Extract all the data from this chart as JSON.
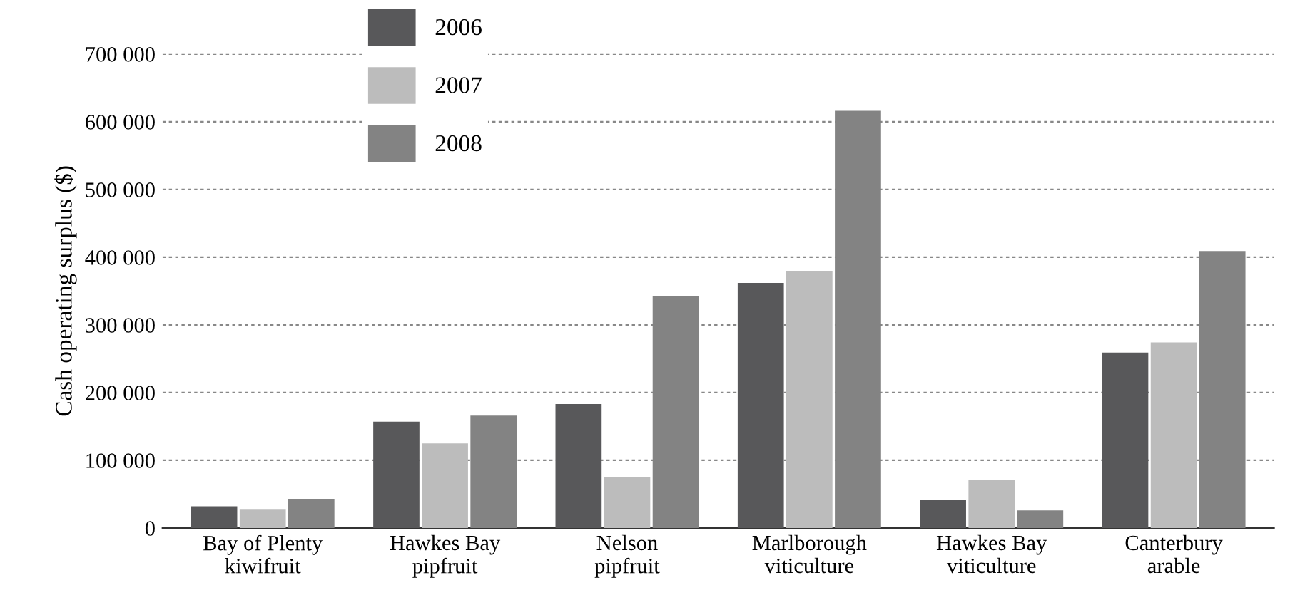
{
  "chart_data": {
    "type": "bar",
    "ylabel": "Cash operating surplus ($)",
    "categories": [
      "Bay of Plenty\nkiwifruit",
      "Hawkes Bay\npipfruit",
      "Nelson\npipfruit",
      "Marlborough\nviticulture",
      "Hawkes Bay\nviticulture",
      "Canterbury\narable"
    ],
    "series": [
      {
        "name": "2006",
        "color": "#58585a",
        "values": [
          32000,
          157000,
          183000,
          362000,
          41000,
          259000
        ]
      },
      {
        "name": "2007",
        "color": "#bcbcbc",
        "values": [
          28000,
          125000,
          75000,
          379000,
          71000,
          274000
        ]
      },
      {
        "name": "2008",
        "color": "#838383",
        "values": [
          43000,
          166000,
          343000,
          616000,
          26000,
          409000
        ]
      }
    ],
    "ylim": [
      0,
      700000
    ],
    "yticks": [
      {
        "value": 0,
        "label": "0"
      },
      {
        "value": 100000,
        "label": "100 000"
      },
      {
        "value": 200000,
        "label": "200 000"
      },
      {
        "value": 300000,
        "label": "300 000"
      },
      {
        "value": 400000,
        "label": "400 000"
      },
      {
        "value": 500000,
        "label": "500 000"
      },
      {
        "value": 600000,
        "label": "600 000"
      },
      {
        "value": 700000,
        "label": "700 000"
      }
    ],
    "grid": "y",
    "legend": "top left"
  }
}
